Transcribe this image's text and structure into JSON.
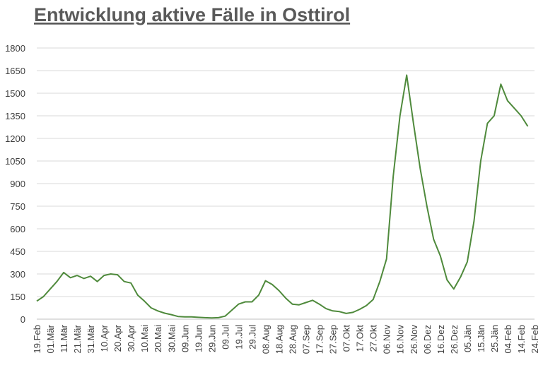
{
  "chart_data": {
    "type": "line",
    "title": "Entwicklung aktive Fälle in Osttirol",
    "categories": [
      "19.Feb",
      null,
      "01.Mär",
      null,
      "11.Mär",
      null,
      "21.Mär",
      null,
      "31.Mär",
      null,
      "10.Apr",
      null,
      "20.Apr",
      null,
      "30.Apr",
      null,
      "10.Mai",
      null,
      "20.Mai",
      null,
      "30.Mai",
      null,
      "09.Jun",
      null,
      "19.Jun",
      null,
      "29.Jun",
      null,
      "09.Jul",
      null,
      "19.Jul",
      null,
      "29.Jul",
      null,
      "08.Aug",
      null,
      "18.Aug",
      null,
      "28.Aug",
      null,
      "07.Sep",
      null,
      "17.Sep",
      null,
      "27.Sep",
      null,
      "07.Okt",
      null,
      "17.Okt",
      null,
      "27.Okt",
      null,
      "06.Nov",
      null,
      "16.Nov",
      null,
      "26.Nov",
      null,
      "06.Dez",
      null,
      "16.Dez",
      null,
      "26.Dez",
      null,
      "05.Jän",
      null,
      "15.Jän",
      null,
      "25.Jän",
      null,
      "04.Feb",
      null,
      "14.Feb",
      null,
      "24.Feb"
    ],
    "series": [
      {
        "color": "#4f8a3c",
        "values": [
          120,
          150,
          200,
          250,
          310,
          275,
          290,
          270,
          285,
          250,
          290,
          300,
          295,
          250,
          240,
          160,
          120,
          75,
          55,
          40,
          30,
          18,
          15,
          15,
          12,
          10,
          8,
          10,
          20,
          60,
          100,
          115,
          115,
          160,
          255,
          230,
          190,
          140,
          100,
          95,
          110,
          125,
          100,
          70,
          55,
          50,
          38,
          45,
          65,
          90,
          130,
          250,
          400,
          950,
          1350,
          1620,
          1300,
          1000,
          750,
          530,
          420,
          260,
          200,
          280,
          380,
          650,
          1050,
          1300,
          1350,
          1560,
          1450,
          1400,
          1350,
          1280,
          null
        ]
      }
    ],
    "ylim": [
      0,
      1800
    ],
    "yticks": [
      0,
      150,
      300,
      450,
      600,
      750,
      900,
      1050,
      1200,
      1350,
      1500,
      1650,
      1800
    ],
    "grid": true
  }
}
